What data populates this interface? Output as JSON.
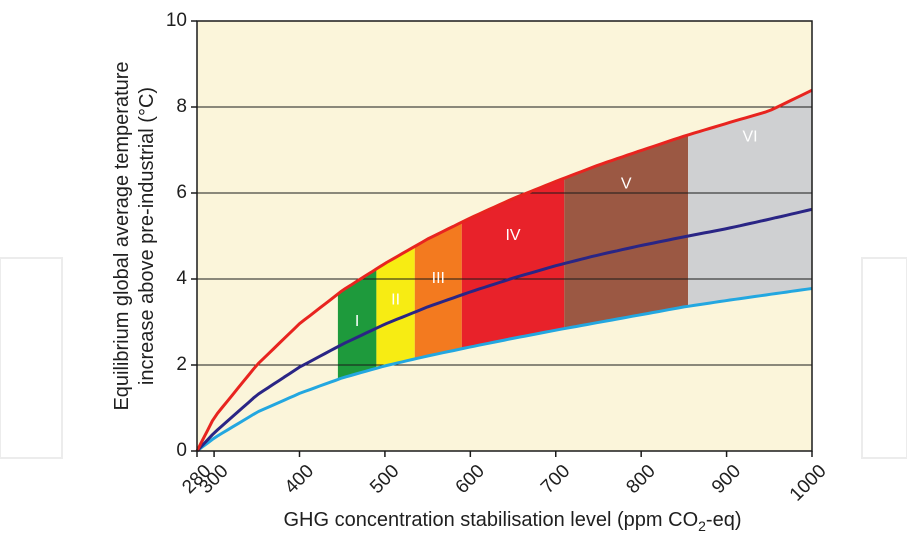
{
  "chart_data": {
    "type": "area",
    "xlabel_main": "GHG concentration stabilisation level (ppm CO",
    "xlabel_sub": "2",
    "xlabel_tail": "-eq)",
    "ylabel_line1": "Equilibrium global average temperature",
    "ylabel_line2": "increase above pre-industrial (°C)",
    "xlim": [
      280,
      1000
    ],
    "ylim": [
      0,
      10
    ],
    "x_ticks": [
      280,
      300,
      400,
      500,
      600,
      700,
      800,
      900,
      1000
    ],
    "y_ticks": [
      0,
      2,
      4,
      6,
      8,
      10
    ],
    "grid": "horizontal",
    "curves": {
      "upper": {
        "color": "#e8241f",
        "points": [
          [
            280,
            0
          ],
          [
            300,
            0.78
          ],
          [
            350,
            2.0
          ],
          [
            400,
            2.96
          ],
          [
            450,
            3.73
          ],
          [
            500,
            4.36
          ],
          [
            550,
            4.93
          ],
          [
            600,
            5.42
          ],
          [
            650,
            5.87
          ],
          [
            700,
            6.27
          ],
          [
            750,
            6.65
          ],
          [
            800,
            6.99
          ],
          [
            850,
            7.32
          ],
          [
            900,
            7.62
          ],
          [
            950,
            7.91
          ],
          [
            1000,
            8.39
          ]
        ]
      },
      "best": {
        "color": "#2a2585",
        "points": [
          [
            280,
            0
          ],
          [
            300,
            0.42
          ],
          [
            350,
            1.3
          ],
          [
            400,
            1.95
          ],
          [
            450,
            2.48
          ],
          [
            500,
            2.95
          ],
          [
            550,
            3.35
          ],
          [
            600,
            3.7
          ],
          [
            650,
            4.02
          ],
          [
            700,
            4.31
          ],
          [
            750,
            4.56
          ],
          [
            800,
            4.78
          ],
          [
            850,
            4.98
          ],
          [
            900,
            5.17
          ],
          [
            950,
            5.39
          ],
          [
            1000,
            5.62
          ]
        ]
      },
      "lower": {
        "color": "#23a7e0",
        "points": [
          [
            280,
            0
          ],
          [
            300,
            0.3
          ],
          [
            350,
            0.9
          ],
          [
            400,
            1.34
          ],
          [
            450,
            1.7
          ],
          [
            500,
            1.98
          ],
          [
            550,
            2.21
          ],
          [
            600,
            2.42
          ],
          [
            650,
            2.62
          ],
          [
            700,
            2.81
          ],
          [
            750,
            2.99
          ],
          [
            800,
            3.17
          ],
          [
            850,
            3.35
          ],
          [
            900,
            3.5
          ],
          [
            950,
            3.64
          ],
          [
            1000,
            3.78
          ]
        ]
      }
    },
    "categories": [
      {
        "label": "I",
        "x": [
          445,
          490
        ],
        "color": "#1e9a3c"
      },
      {
        "label": "II",
        "x": [
          490,
          535
        ],
        "color": "#f7ec13"
      },
      {
        "label": "III",
        "x": [
          535,
          590
        ],
        "color": "#f37a1f"
      },
      {
        "label": "IV",
        "x": [
          590,
          710
        ],
        "color": "#e8222a"
      },
      {
        "label": "V",
        "x": [
          710,
          855
        ],
        "color": "#9b5843"
      },
      {
        "label": "VI",
        "x": [
          855,
          1000
        ],
        "color": "#cfd0d2"
      }
    ],
    "plot_bg": "#fbf5da"
  }
}
